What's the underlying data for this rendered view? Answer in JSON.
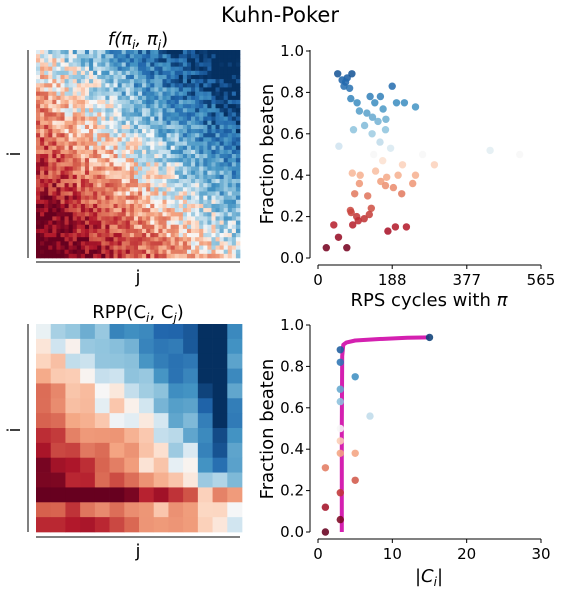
{
  "figure": {
    "title": "Kuhn-Poker"
  },
  "colors": {
    "diverging_low": "#67001f",
    "diverging_mid": "#f7f7f7",
    "diverging_high": "#053061",
    "frontier_line": "#d420b0",
    "axis": "#000000"
  },
  "chart_data": [
    {
      "id": "payoff-heatmap",
      "type": "heatmap",
      "title": "f(π_i, π_j)",
      "title_base": "f(π",
      "title_sub1": "i",
      "title_mid": ", π",
      "title_sub2": "j",
      "title_end": ")",
      "xlabel": "j",
      "ylabel": "i",
      "rows": 50,
      "cols": 50,
      "colormap": "RdBu",
      "value_range": [
        -1,
        1
      ],
      "structure": "f(i,j) > 0 (blue) toward upper-right, < 0 (red) toward lower-left, noisy"
    },
    {
      "id": "rps-scatter",
      "type": "scatter",
      "xlabel": "RPS cycles with π",
      "xlabel_base": "RPS cycles with ",
      "xlabel_sym": "π",
      "ylabel": "Fraction beaten",
      "xlim": [
        0,
        565
      ],
      "ylim": [
        0,
        1
      ],
      "xticks": [
        0,
        188,
        377,
        565
      ],
      "yticks": [
        0.0,
        0.2,
        0.4,
        0.6,
        0.8,
        1.0
      ],
      "tick_labels_x": [
        "0",
        "188",
        "377",
        "565"
      ],
      "tick_labels_y": [
        "0.0",
        "0.2",
        "0.4",
        "0.6",
        "0.8",
        "1.0"
      ],
      "color_by": "y",
      "points": [
        [
          50,
          0.89
        ],
        [
          74,
          0.87
        ],
        [
          61,
          0.86
        ],
        [
          66,
          0.83
        ],
        [
          80,
          0.82
        ],
        [
          70,
          0.85
        ],
        [
          86,
          0.89
        ],
        [
          83,
          0.77
        ],
        [
          99,
          0.75
        ],
        [
          132,
          0.78
        ],
        [
          144,
          0.75
        ],
        [
          158,
          0.78
        ],
        [
          188,
          0.83
        ],
        [
          199,
          0.75
        ],
        [
          219,
          0.75
        ],
        [
          247,
          0.73
        ],
        [
          436,
          0.52
        ],
        [
          511,
          0.5
        ],
        [
          152,
          0.66
        ],
        [
          105,
          0.71
        ],
        [
          124,
          0.7
        ],
        [
          118,
          0.64
        ],
        [
          137,
          0.6
        ],
        [
          138,
          0.68
        ],
        [
          165,
          0.72
        ],
        [
          172,
          0.67
        ],
        [
          171,
          0.62
        ],
        [
          90,
          0.62
        ],
        [
          157,
          0.56
        ],
        [
          265,
          0.5
        ],
        [
          53,
          0.54
        ],
        [
          141,
          0.5
        ],
        [
          164,
          0.47
        ],
        [
          184,
          0.53
        ],
        [
          214,
          0.45
        ],
        [
          295,
          0.45
        ],
        [
          87,
          0.41
        ],
        [
          107,
          0.4
        ],
        [
          146,
          0.42
        ],
        [
          174,
          0.39
        ],
        [
          203,
          0.4
        ],
        [
          247,
          0.4
        ],
        [
          105,
          0.36
        ],
        [
          159,
          0.37
        ],
        [
          171,
          0.35
        ],
        [
          191,
          0.34
        ],
        [
          93,
          0.31
        ],
        [
          126,
          0.3
        ],
        [
          212,
          0.31
        ],
        [
          240,
          0.36
        ],
        [
          82,
          0.23
        ],
        [
          84,
          0.22
        ],
        [
          98,
          0.2
        ],
        [
          102,
          0.18
        ],
        [
          117,
          0.19
        ],
        [
          135,
          0.24
        ],
        [
          130,
          0.21
        ],
        [
          88,
          0.16
        ],
        [
          40,
          0.16
        ],
        [
          224,
          0.15
        ],
        [
          52,
          0.1
        ],
        [
          177,
          0.13
        ],
        [
          196,
          0.15
        ],
        [
          21,
          0.05
        ],
        [
          73,
          0.05
        ]
      ]
    },
    {
      "id": "rpp-heatmap",
      "type": "heatmap",
      "title": "RPP(C_i, C_j)",
      "title_base": "RPP(C",
      "title_sub1": "i",
      "title_mid": ", C",
      "title_sub2": "j",
      "title_end": ")",
      "xlabel": "j",
      "ylabel": "i",
      "rows": 14,
      "cols": 14,
      "colormap": "RdBu",
      "value_range": [
        -1,
        1
      ],
      "structure": "blue in upper-right (strongest near column 12), red in lower-left (strongest row 12), near-white diagonal"
    },
    {
      "id": "size-scatter",
      "type": "scatter",
      "xlabel": "|C_i|",
      "xlabel_base": "|C",
      "xlabel_sub": "i",
      "xlabel_end": "|",
      "ylabel": "Fraction beaten",
      "xlim": [
        0,
        30
      ],
      "ylim": [
        0,
        1
      ],
      "xticks": [
        0,
        10,
        20,
        30
      ],
      "yticks": [
        0.0,
        0.2,
        0.4,
        0.6,
        0.8,
        1.0
      ],
      "tick_labels_x": [
        "0",
        "10",
        "20",
        "30"
      ],
      "tick_labels_y": [
        "0.0",
        "0.2",
        "0.4",
        "0.6",
        "0.8",
        "1.0"
      ],
      "color_by": "y",
      "points": [
        [
          15,
          0.94
        ],
        [
          3,
          0.88
        ],
        [
          3,
          0.82
        ],
        [
          5,
          0.75
        ],
        [
          3,
          0.69
        ],
        [
          3,
          0.63
        ],
        [
          7,
          0.56
        ],
        [
          3,
          0.5
        ],
        [
          3,
          0.44
        ],
        [
          3,
          0.38
        ],
        [
          5,
          0.38
        ],
        [
          1,
          0.31
        ],
        [
          5,
          0.25
        ],
        [
          3,
          0.19
        ],
        [
          1,
          0.12
        ],
        [
          3,
          0.06
        ],
        [
          1,
          0.0
        ]
      ],
      "frontier": [
        [
          3.2,
          0.0
        ],
        [
          3.2,
          0.5
        ],
        [
          3.25,
          0.85
        ],
        [
          3.4,
          0.905
        ],
        [
          3.8,
          0.915
        ],
        [
          5.0,
          0.925
        ],
        [
          8.0,
          0.932
        ],
        [
          12.0,
          0.938
        ],
        [
          15.0,
          0.94
        ]
      ]
    }
  ]
}
